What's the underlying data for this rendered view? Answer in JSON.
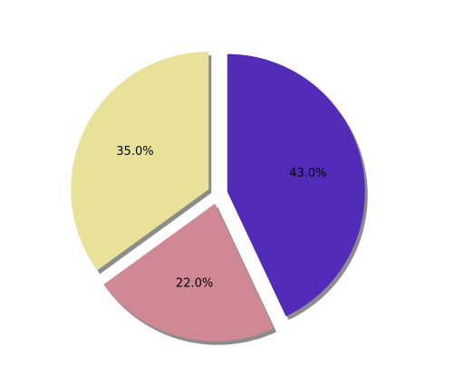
{
  "chart_data": {
    "type": "pie",
    "title": "",
    "start_angle_deg": 90,
    "direction": "counterclockwise",
    "shadow": true,
    "slices": [
      {
        "value": 35.0,
        "label_text": "35.0%",
        "color": "#e8e298",
        "exploded": true
      },
      {
        "value": 22.0,
        "label_text": "22.0%",
        "color": "#d08894",
        "exploded": true
      },
      {
        "value": 43.0,
        "label_text": "43.0%",
        "color": "#532bb9",
        "exploded": true
      }
    ]
  }
}
